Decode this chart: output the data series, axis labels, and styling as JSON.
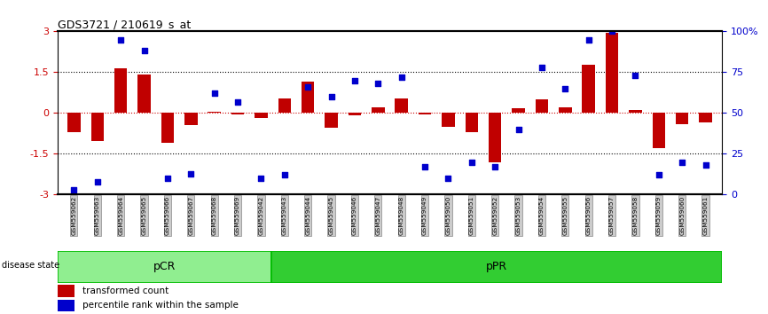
{
  "title": "GDS3721 / 210619_s_at",
  "samples": [
    "GSM559062",
    "GSM559063",
    "GSM559064",
    "GSM559065",
    "GSM559066",
    "GSM559067",
    "GSM559068",
    "GSM559069",
    "GSM559042",
    "GSM559043",
    "GSM559044",
    "GSM559045",
    "GSM559046",
    "GSM559047",
    "GSM559048",
    "GSM559049",
    "GSM559050",
    "GSM559051",
    "GSM559052",
    "GSM559053",
    "GSM559054",
    "GSM559055",
    "GSM559056",
    "GSM559057",
    "GSM559058",
    "GSM559059",
    "GSM559060",
    "GSM559061"
  ],
  "bar_values": [
    -0.7,
    -1.02,
    1.65,
    1.42,
    -1.1,
    -0.45,
    0.06,
    -0.06,
    -0.17,
    0.55,
    1.15,
    -0.55,
    -0.08,
    0.22,
    0.52,
    -0.06,
    -0.5,
    -0.7,
    -1.82,
    0.18,
    0.5,
    0.2,
    1.78,
    2.95,
    0.12,
    -1.3,
    -0.42,
    -0.35
  ],
  "dot_values_pct": [
    3,
    8,
    95,
    88,
    10,
    13,
    62,
    57,
    10,
    12,
    66,
    60,
    70,
    68,
    72,
    17,
    10,
    20,
    17,
    40,
    78,
    65,
    95,
    100,
    73,
    12,
    20,
    18
  ],
  "pCR_count": 9,
  "pPR_count": 19,
  "bar_color": "#C00000",
  "dot_color": "#0000CC",
  "zero_line_color": "#CC0000",
  "dotted_line_color": "#000000",
  "pCR_color": "#90EE90",
  "pPR_color": "#32CD32",
  "ylim": [
    -3.0,
    3.0
  ],
  "y2lim": [
    0,
    100
  ],
  "yticks_left": [
    -3,
    -1.5,
    0,
    1.5,
    3
  ],
  "yticks_right": [
    0,
    25,
    50,
    75,
    100
  ],
  "background_color": "#ffffff"
}
